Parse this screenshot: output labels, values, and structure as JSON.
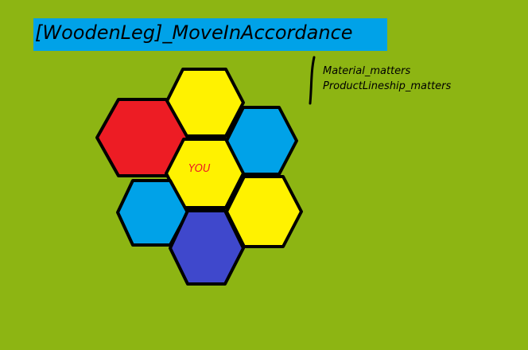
{
  "canvas": {
    "background_color": "#8DB513"
  },
  "title": {
    "text": "[WoodenLeg]_MoveInAccordance",
    "banner_color": "#00A2E8",
    "text_color": "#000000"
  },
  "notes": {
    "lines": [
      "Material_matters",
      "ProductLineship_matters"
    ]
  },
  "hex_grid": {
    "outline_color": "#000000",
    "center_label": "YOU",
    "center_label_color": "#ED1C24",
    "cells": [
      {
        "id": "top",
        "color": "#FFF200"
      },
      {
        "id": "upper-left",
        "color": "#ED1C24"
      },
      {
        "id": "upper-right",
        "color": "#00A2E8"
      },
      {
        "id": "center",
        "color": "#FFF200"
      },
      {
        "id": "lower-left",
        "color": "#00A2E8"
      },
      {
        "id": "lower-right",
        "color": "#FFF200"
      },
      {
        "id": "bottom",
        "color": "#3F48CC"
      }
    ]
  }
}
